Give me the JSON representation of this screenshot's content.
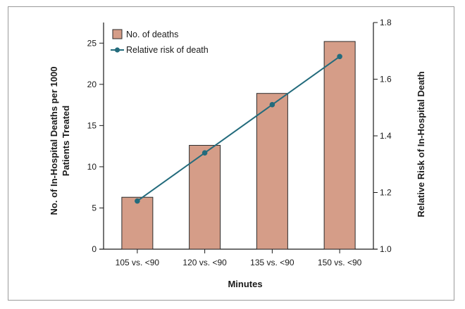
{
  "chart_data": {
    "type": "bar",
    "categories": [
      "105 vs. <90",
      "120 vs. <90",
      "135 vs. <90",
      "150 vs. <90"
    ],
    "series": [
      {
        "name": "No. of deaths",
        "type": "bar",
        "axis": "left",
        "values": [
          6.3,
          12.6,
          18.9,
          25.2
        ]
      },
      {
        "name": "Relative risk of death",
        "type": "line",
        "axis": "right",
        "values": [
          1.17,
          1.34,
          1.51,
          1.68
        ]
      }
    ],
    "xlabel": "Minutes",
    "ylabel": "No. of In-Hospital Deaths per 1000 Patients Treated",
    "ylabel_lines": [
      "No. of In-Hospital Deaths per 1000",
      "Patients Treated"
    ],
    "y2label": "Relative Risk of In-Hospital Death",
    "ylim": [
      0,
      27.5
    ],
    "yticks": [
      0,
      5,
      10,
      15,
      20,
      25
    ],
    "ytick_labels": [
      "0",
      "5",
      "10",
      "15",
      "20",
      "25"
    ],
    "y2lim": [
      1.0,
      1.8
    ],
    "y2ticks": [
      1.0,
      1.2,
      1.4,
      1.6,
      1.8
    ],
    "y2tick_labels": [
      "1.0",
      "1.2",
      "1.4",
      "1.6",
      "1.8"
    ],
    "legend": "top-left",
    "grid": false,
    "colors": {
      "bar_fill": "#d59d88",
      "bar_stroke": "#2b2b2b",
      "line": "#236b7c",
      "marker": "#236b7c"
    }
  }
}
